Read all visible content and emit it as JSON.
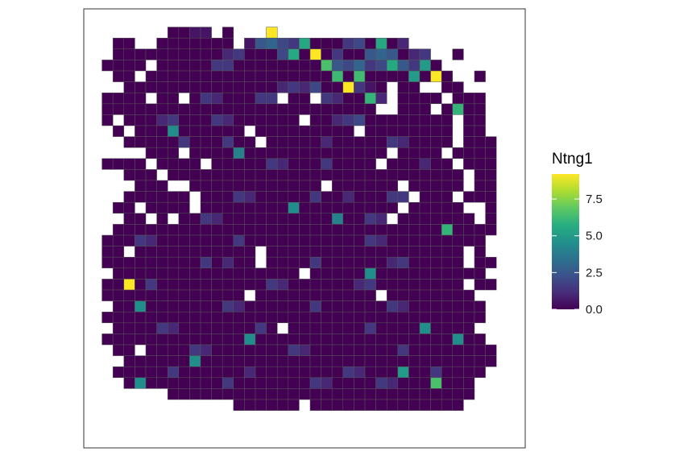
{
  "chart_data": {
    "type": "heatmap",
    "title": "",
    "xlabel": "",
    "ylabel": "",
    "grid": false,
    "legend_position": "right",
    "colorbar": {
      "title": "Ntng1",
      "min": 0,
      "max": 9.2,
      "ticks": [
        0,
        2.5,
        5,
        7.5
      ],
      "tick_labels": [
        "0.0",
        "2.5",
        "5.0",
        "7.5"
      ]
    },
    "grid_size": {
      "cols": 37,
      "rows": 37
    },
    "cells": [
      [
        5,
        1,
        0.5
      ],
      [
        6,
        1,
        0.5
      ],
      [
        9,
        1,
        0.5
      ],
      [
        10,
        1,
        0.5
      ],
      [
        14,
        1,
        0.5
      ],
      [
        15,
        1,
        0.5
      ],
      [
        13,
        2,
        1.5
      ],
      [
        14,
        2,
        0.5
      ],
      [
        15,
        2,
        2.5
      ],
      [
        16,
        2,
        3
      ],
      [
        17,
        2,
        2
      ],
      [
        18,
        2,
        1.5
      ],
      [
        19,
        2,
        2
      ],
      [
        23,
        2,
        1.5
      ],
      [
        24,
        2,
        2
      ],
      [
        26,
        2,
        2.5
      ],
      [
        28,
        2,
        1
      ],
      [
        29,
        2,
        3
      ],
      [
        30,
        2,
        3.5
      ],
      [
        12,
        3,
        1
      ],
      [
        13,
        3,
        1.5
      ],
      [
        17,
        3,
        2
      ],
      [
        22,
        3,
        1.5
      ],
      [
        25,
        3,
        2.5
      ],
      [
        26,
        3,
        3
      ],
      [
        27,
        3,
        2.5
      ],
      [
        29,
        3,
        1
      ],
      [
        30,
        3,
        1.5
      ],
      [
        31,
        3,
        2
      ],
      [
        11,
        4,
        1.5
      ],
      [
        12,
        4,
        1.5
      ],
      [
        22,
        4,
        2.5
      ],
      [
        23,
        4,
        2
      ],
      [
        24,
        4,
        3
      ],
      [
        25,
        4,
        1.5
      ],
      [
        26,
        4,
        2
      ],
      [
        27,
        4,
        1
      ],
      [
        28,
        4,
        2.5
      ],
      [
        29,
        4,
        1.5
      ],
      [
        30,
        4,
        0.5
      ],
      [
        32,
        4,
        1.5
      ],
      [
        17,
        6,
        1
      ],
      [
        18,
        6,
        1.5
      ],
      [
        19,
        6,
        1
      ],
      [
        20,
        6,
        2
      ],
      [
        23,
        6,
        1
      ],
      [
        24,
        6,
        1.5
      ],
      [
        25,
        6,
        0.5
      ],
      [
        10,
        7,
        1.5
      ],
      [
        11,
        7,
        1
      ],
      [
        15,
        7,
        1.5
      ],
      [
        16,
        7,
        1.5
      ],
      [
        21,
        7,
        1.5
      ],
      [
        22,
        7,
        1
      ],
      [
        25,
        7,
        2
      ],
      [
        26,
        7,
        1
      ],
      [
        6,
        9,
        1
      ],
      [
        7,
        9,
        1.5
      ],
      [
        11,
        9,
        1.5
      ],
      [
        12,
        9,
        1
      ],
      [
        22,
        9,
        1
      ],
      [
        23,
        9,
        1.5
      ],
      [
        24,
        9,
        2
      ],
      [
        8,
        11,
        1.5
      ],
      [
        12,
        11,
        1.5
      ],
      [
        21,
        11,
        1
      ],
      [
        27,
        11,
        1.5
      ],
      [
        28,
        11,
        1
      ],
      [
        16,
        13,
        1.5
      ],
      [
        17,
        13,
        1
      ],
      [
        21,
        13,
        1.5
      ],
      [
        30,
        13,
        1
      ],
      [
        13,
        16,
        1.5
      ],
      [
        14,
        16,
        1
      ],
      [
        20,
        16,
        1.5
      ],
      [
        23,
        16,
        1
      ],
      [
        27,
        16,
        1.5
      ],
      [
        28,
        16,
        1.5
      ],
      [
        10,
        18,
        1.5
      ],
      [
        11,
        18,
        1
      ],
      [
        22,
        18,
        1.5
      ],
      [
        25,
        18,
        1.5
      ],
      [
        26,
        18,
        1
      ],
      [
        4,
        20,
        1.5
      ],
      [
        5,
        20,
        1
      ],
      [
        13,
        20,
        1.5
      ],
      [
        25,
        20,
        1.5
      ],
      [
        26,
        20,
        1
      ],
      [
        10,
        22,
        1.5
      ],
      [
        12,
        22,
        1
      ],
      [
        20,
        22,
        1.5
      ],
      [
        27,
        22,
        1
      ],
      [
        28,
        22,
        1.5
      ],
      [
        5,
        24,
        1.5
      ],
      [
        16,
        24,
        1.5
      ],
      [
        17,
        24,
        1
      ],
      [
        24,
        24,
        1
      ],
      [
        25,
        24,
        1.5
      ],
      [
        12,
        26,
        1.5
      ],
      [
        13,
        26,
        1
      ],
      [
        20,
        26,
        1.5
      ],
      [
        27,
        26,
        1.5
      ],
      [
        28,
        26,
        1
      ],
      [
        6,
        28,
        1.5
      ],
      [
        7,
        28,
        1
      ],
      [
        15,
        28,
        1.5
      ],
      [
        25,
        28,
        1.5
      ],
      [
        30,
        28,
        1
      ],
      [
        9,
        30,
        1.5
      ],
      [
        10,
        30,
        1
      ],
      [
        18,
        30,
        1.5
      ],
      [
        19,
        30,
        1
      ],
      [
        28,
        30,
        1.5
      ],
      [
        7,
        32,
        1.5
      ],
      [
        14,
        32,
        1
      ],
      [
        23,
        32,
        1.5
      ],
      [
        24,
        32,
        1
      ],
      [
        31,
        32,
        1.5
      ],
      [
        12,
        33,
        1.5
      ],
      [
        20,
        33,
        1.5
      ],
      [
        21,
        33,
        1
      ],
      [
        26,
        33,
        1.5
      ],
      [
        27,
        33,
        1
      ]
    ]
  }
}
